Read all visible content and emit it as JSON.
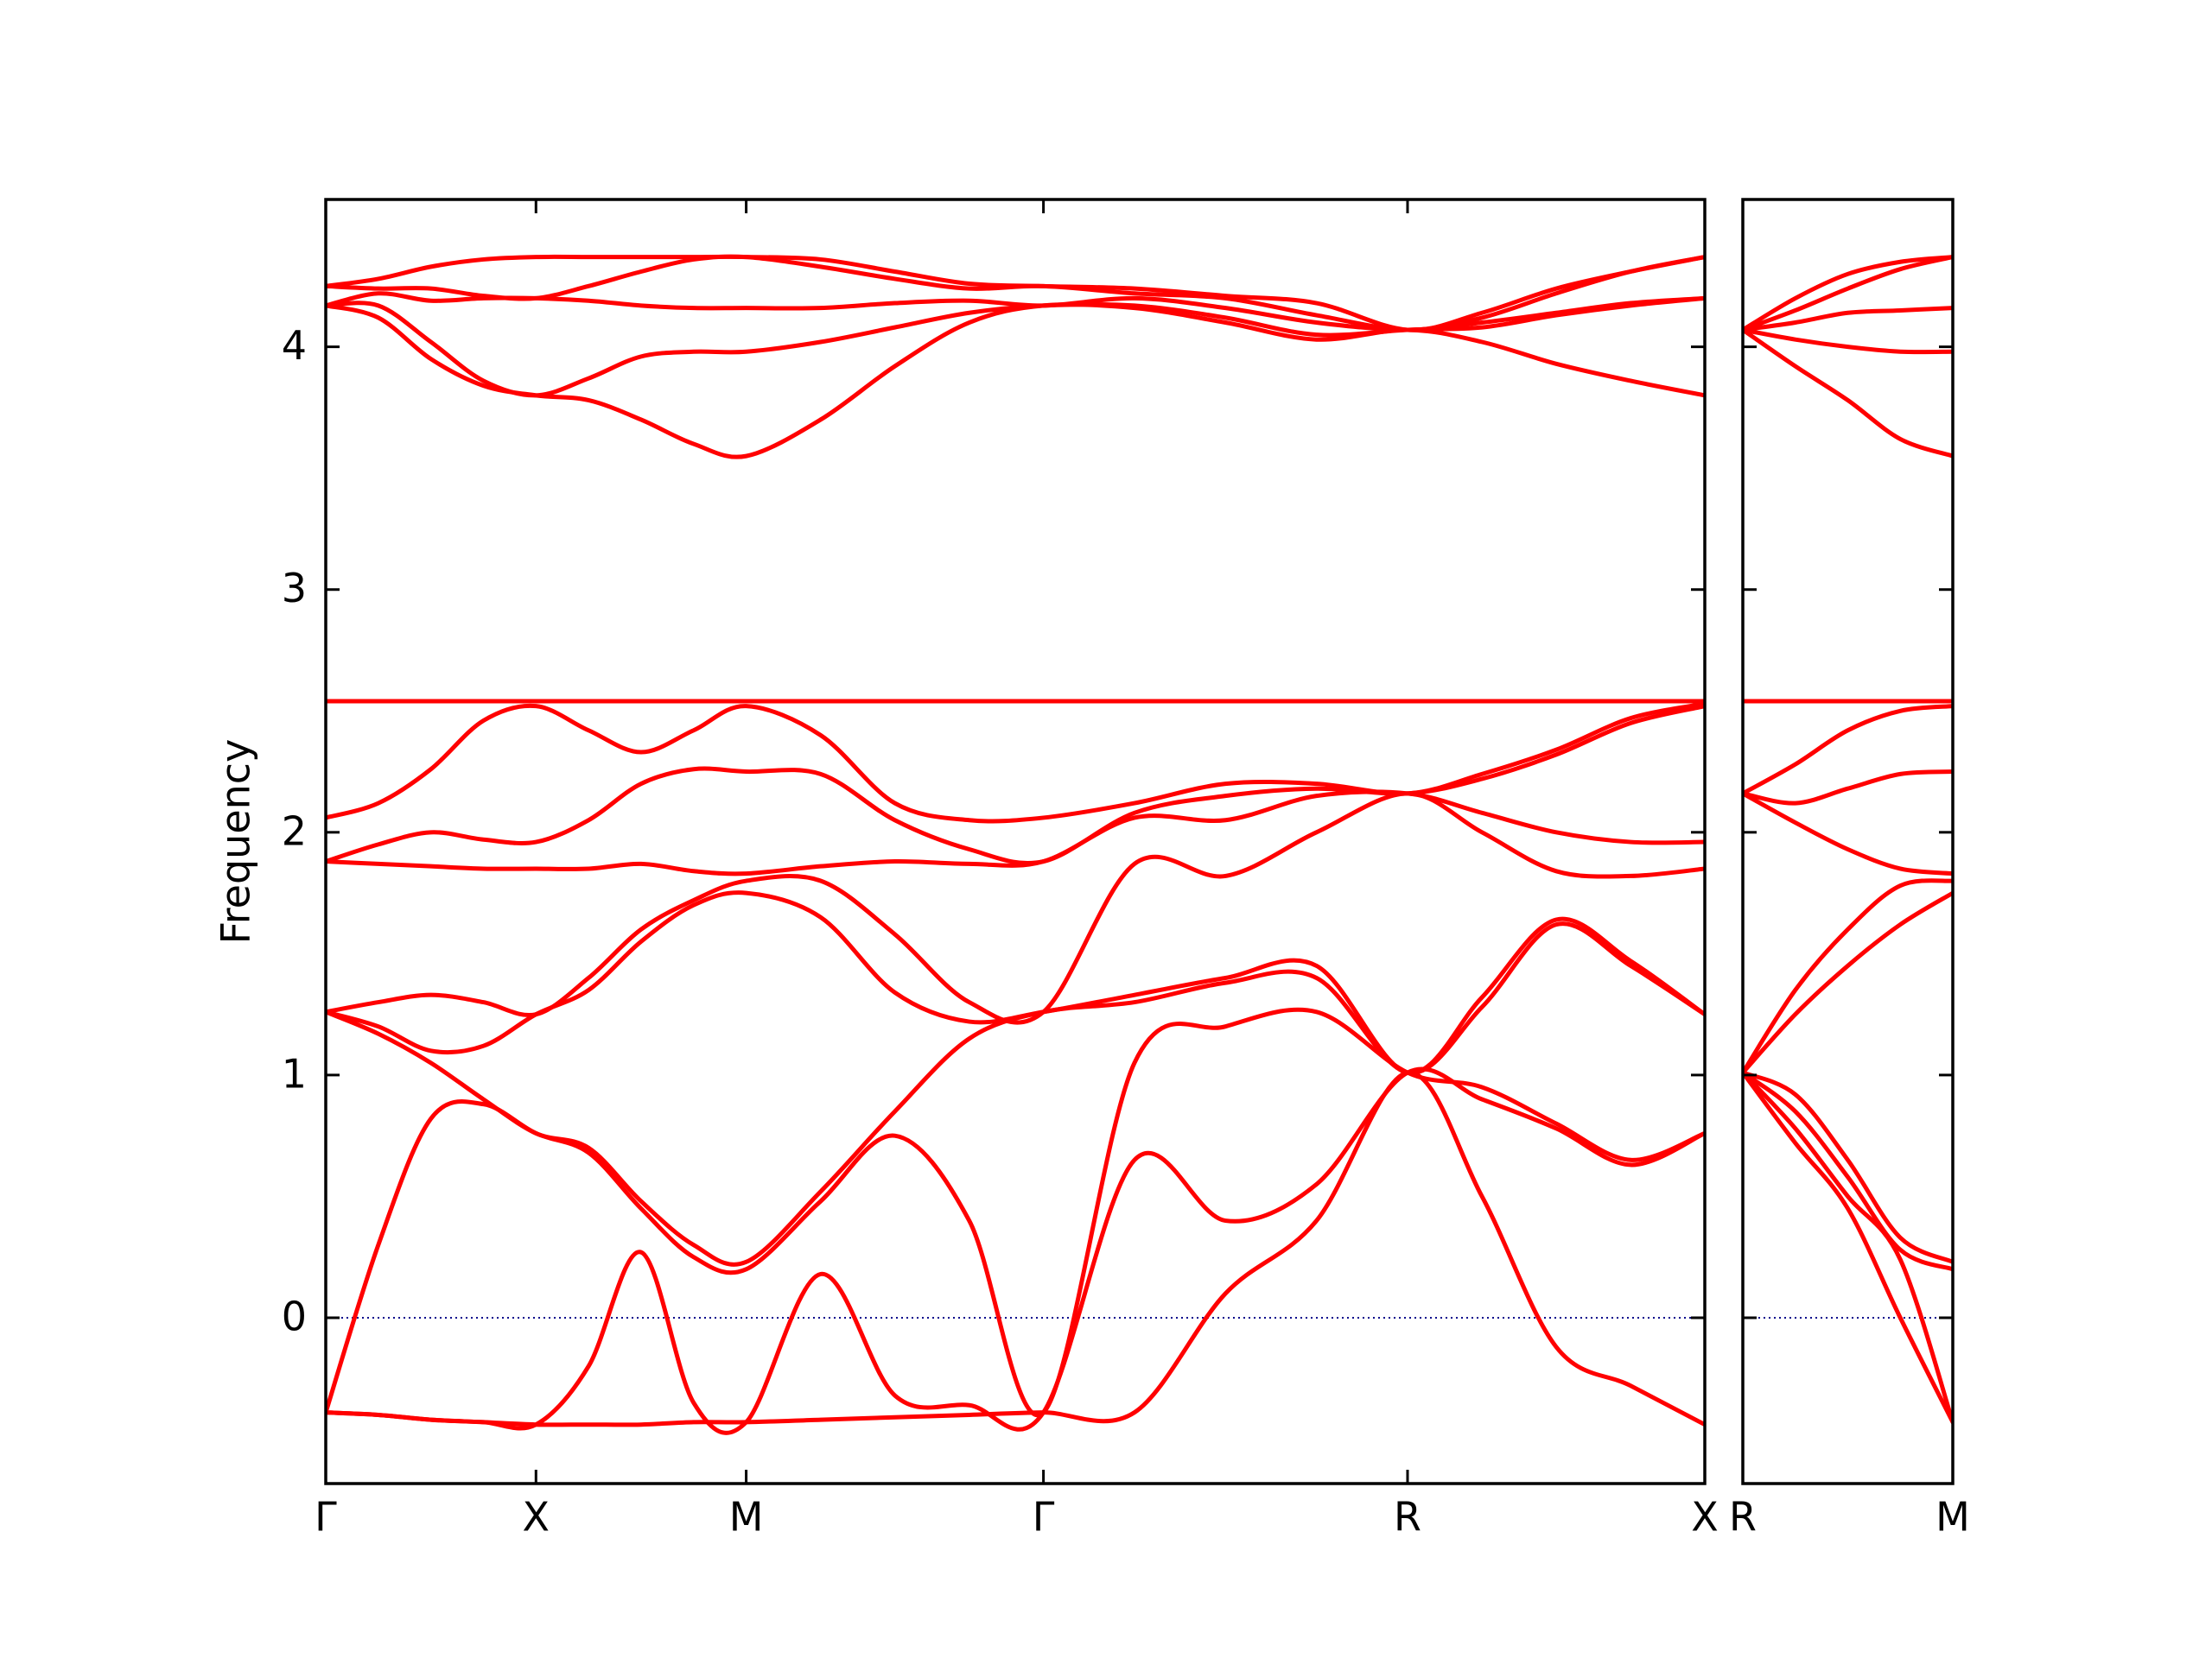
{
  "chart_data": [
    {
      "type": "line",
      "ylabel": "Frequency",
      "line_color": "#ff0000",
      "hline": 0,
      "hline_color": "#00008b",
      "ytick_labels": true,
      "xlim": [
        0,
        6.56
      ],
      "ylim": [
        -0.683,
        4.607
      ],
      "xticks": [
        {
          "value": 0,
          "label": "Γ"
        },
        {
          "value": 1,
          "label": "X"
        },
        {
          "value": 2,
          "label": "M"
        },
        {
          "value": 3.414,
          "label": "Γ"
        },
        {
          "value": 5.146,
          "label": "R"
        },
        {
          "value": 6.56,
          "label": "X"
        }
      ],
      "yticks": [
        0,
        1,
        2,
        3,
        4
      ],
      "x": [
        0,
        0.25,
        0.5,
        0.75,
        1,
        1.25,
        1.5,
        1.75,
        2,
        2.354,
        2.707,
        3.061,
        3.414,
        3.847,
        4.28,
        4.713,
        5.146,
        5.5,
        5.853,
        6.207,
        6.56
      ],
      "series": [
        {
          "values": [
            -0.39,
            -0.4,
            -0.42,
            -0.43,
            -0.44,
            -0.44,
            -0.44,
            -0.43,
            -0.43,
            -0.42,
            -0.41,
            -0.4,
            -0.39,
            -0.39,
            0.1,
            0.4,
            1.01,
            0.5,
            -0.12,
            -0.28,
            -0.44
          ]
        },
        {
          "values": [
            -0.39,
            -0.4,
            -0.42,
            -0.43,
            -0.44,
            -0.2,
            0.27,
            -0.35,
            -0.43,
            0.18,
            -0.32,
            -0.36,
            -0.39,
            0.65,
            0.4,
            0.55,
            1.01,
            0.9,
            0.78,
            0.63,
            0.76
          ]
        },
        {
          "values": [
            -0.39,
            0.3,
            0.82,
            0.88,
            0.76,
            0.68,
            0.45,
            0.25,
            0.2,
            0.48,
            0.75,
            0.4,
            -0.39,
            1.05,
            1.2,
            1.26,
            1.01,
            0.95,
            0.8,
            0.65,
            0.76
          ]
        },
        {
          "values": [
            1.26,
            1.17,
            1.05,
            0.9,
            0.76,
            0.7,
            0.48,
            0.3,
            0.23,
            0.52,
            0.85,
            1.15,
            1.26,
            1.3,
            1.38,
            1.4,
            1.01,
            1.28,
            1.62,
            1.45,
            1.25
          ]
        },
        {
          "values": [
            1.26,
            1.2,
            1.1,
            1.12,
            1.25,
            1.35,
            1.55,
            1.7,
            1.75,
            1.65,
            1.34,
            1.22,
            1.26,
            1.33,
            1.4,
            1.45,
            1.01,
            1.32,
            1.64,
            1.47,
            1.25
          ]
        },
        {
          "values": [
            1.26,
            1.3,
            1.33,
            1.3,
            1.25,
            1.4,
            1.6,
            1.72,
            1.8,
            1.8,
            1.58,
            1.3,
            1.26,
            1.87,
            1.82,
            2.0,
            2.16,
            2.0,
            1.84,
            1.82,
            1.85
          ]
        },
        {
          "values": [
            1.88,
            1.87,
            1.86,
            1.85,
            1.85,
            1.85,
            1.87,
            1.84,
            1.83,
            1.86,
            1.88,
            1.87,
            1.88,
            2.06,
            2.05,
            2.15,
            2.16,
            2.08,
            2.0,
            1.96,
            1.96
          ]
        },
        {
          "values": [
            1.88,
            1.95,
            2.0,
            1.97,
            1.96,
            2.05,
            2.2,
            2.26,
            2.25,
            2.24,
            2.05,
            1.93,
            1.88,
            2.08,
            2.15,
            2.18,
            2.16,
            2.22,
            2.32,
            2.45,
            2.52
          ]
        },
        {
          "values": [
            2.06,
            2.12,
            2.26,
            2.46,
            2.52,
            2.42,
            2.33,
            2.42,
            2.52,
            2.4,
            2.12,
            2.05,
            2.06,
            2.12,
            2.2,
            2.2,
            2.16,
            2.24,
            2.34,
            2.47,
            2.53
          ]
        },
        {
          "values": [
            2.54,
            2.54,
            2.54,
            2.54,
            2.54,
            2.54,
            2.54,
            2.54,
            2.54,
            2.54,
            2.54,
            2.54,
            2.54,
            2.54,
            2.54,
            2.54,
            2.54,
            2.54,
            2.54,
            2.54,
            2.54
          ]
        },
        {
          "values": [
            4.17,
            4.12,
            3.95,
            3.84,
            3.8,
            3.78,
            3.7,
            3.6,
            3.55,
            3.7,
            3.92,
            4.1,
            4.17,
            4.16,
            4.1,
            4.03,
            4.07,
            4.02,
            3.93,
            3.86,
            3.8
          ]
        },
        {
          "values": [
            4.17,
            4.17,
            4.02,
            3.86,
            3.8,
            3.87,
            3.96,
            3.98,
            3.98,
            4.02,
            4.08,
            4.14,
            4.17,
            4.17,
            4.12,
            4.05,
            4.07,
            4.08,
            4.13,
            4.17,
            4.2
          ]
        },
        {
          "values": [
            4.17,
            4.22,
            4.19,
            4.2,
            4.2,
            4.19,
            4.17,
            4.16,
            4.16,
            4.16,
            4.18,
            4.19,
            4.17,
            4.2,
            4.16,
            4.1,
            4.07,
            4.1,
            4.14,
            4.18,
            4.2
          ]
        },
        {
          "values": [
            4.25,
            4.24,
            4.24,
            4.21,
            4.2,
            4.25,
            4.31,
            4.36,
            4.37,
            4.33,
            4.28,
            4.24,
            4.25,
            4.22,
            4.2,
            4.13,
            4.07,
            4.12,
            4.22,
            4.31,
            4.37
          ]
        },
        {
          "values": [
            4.25,
            4.28,
            4.33,
            4.36,
            4.37,
            4.37,
            4.37,
            4.37,
            4.37,
            4.36,
            4.31,
            4.26,
            4.25,
            4.24,
            4.21,
            4.18,
            4.07,
            4.14,
            4.24,
            4.31,
            4.37
          ]
        }
      ]
    },
    {
      "type": "line",
      "line_color": "#ff0000",
      "hline": 0,
      "hline_color": "#00008b",
      "ytick_labels": false,
      "xlim": [
        0,
        1
      ],
      "ylim": [
        -0.683,
        4.607
      ],
      "xticks": [
        {
          "value": 0,
          "label": "R"
        },
        {
          "value": 1,
          "label": "M"
        }
      ],
      "yticks": [
        0,
        1,
        2,
        3,
        4
      ],
      "x": [
        0,
        0.25,
        0.5,
        0.75,
        1
      ],
      "series": [
        {
          "values": [
            1.01,
            0.72,
            0.45,
            0.0,
            -0.43
          ]
        },
        {
          "values": [
            1.01,
            0.78,
            0.5,
            0.24,
            -0.43
          ]
        },
        {
          "values": [
            1.01,
            0.85,
            0.58,
            0.28,
            0.2
          ]
        },
        {
          "values": [
            1.01,
            0.92,
            0.65,
            0.33,
            0.23
          ]
        },
        {
          "values": [
            1.01,
            1.25,
            1.45,
            1.62,
            1.75
          ]
        },
        {
          "values": [
            1.01,
            1.35,
            1.6,
            1.78,
            1.8
          ]
        },
        {
          "values": [
            2.16,
            2.04,
            1.93,
            1.85,
            1.83
          ]
        },
        {
          "values": [
            2.16,
            2.12,
            2.18,
            2.24,
            2.25
          ]
        },
        {
          "values": [
            2.16,
            2.28,
            2.42,
            2.5,
            2.52
          ]
        },
        {
          "values": [
            2.54,
            2.54,
            2.54,
            2.54,
            2.54
          ]
        },
        {
          "values": [
            4.07,
            3.92,
            3.78,
            3.62,
            3.55
          ]
        },
        {
          "values": [
            4.07,
            4.03,
            4.0,
            3.98,
            3.98
          ]
        },
        {
          "values": [
            4.07,
            4.1,
            4.14,
            4.15,
            4.16
          ]
        },
        {
          "values": [
            4.07,
            4.15,
            4.24,
            4.32,
            4.37
          ]
        },
        {
          "values": [
            4.07,
            4.2,
            4.3,
            4.35,
            4.37
          ]
        }
      ]
    }
  ]
}
